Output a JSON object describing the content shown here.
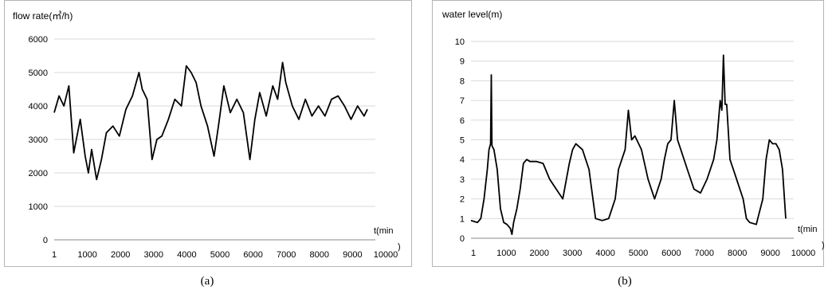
{
  "captions": {
    "a": "(a)",
    "b": "(b)"
  },
  "chart_data": [
    {
      "type": "line",
      "title": "flow rate(㎥/h)",
      "xlabel_line1": "t(min",
      "xlabel_line2": ")",
      "ylabel": "",
      "x_ticks": [
        "1",
        "1000",
        "2000",
        "3000",
        "4000",
        "5000",
        "6000",
        "7000",
        "8000",
        "9000",
        "10000"
      ],
      "y_ticks": [
        0,
        1000,
        2000,
        3000,
        4000,
        5000,
        6000
      ],
      "ylim": [
        0,
        6000
      ],
      "xlim": [
        1,
        9600
      ],
      "grid": "horizontal",
      "series": [
        {
          "color": "#000000",
          "x": [
            1,
            150,
            300,
            450,
            600,
            800,
            950,
            1050,
            1150,
            1300,
            1450,
            1600,
            1800,
            2000,
            2200,
            2400,
            2600,
            2700,
            2850,
            3000,
            3150,
            3300,
            3500,
            3700,
            3900,
            4050,
            4200,
            4350,
            4500,
            4700,
            4900,
            5050,
            5200,
            5400,
            5600,
            5800,
            6000,
            6150,
            6300,
            6500,
            6700,
            6850,
            7000,
            7100,
            7300,
            7500,
            7700,
            7900,
            8100,
            8300,
            8500,
            8700,
            8900,
            9100,
            9300,
            9500,
            9600
          ],
          "values": [
            3800,
            4300,
            4000,
            4600,
            2600,
            3600,
            2500,
            2000,
            2700,
            1800,
            2400,
            3200,
            3400,
            3100,
            3900,
            4300,
            5000,
            4500,
            4200,
            2400,
            3000,
            3100,
            3600,
            4200,
            4000,
            5200,
            5000,
            4700,
            4000,
            3400,
            2500,
            3500,
            4600,
            3800,
            4200,
            3800,
            2400,
            3600,
            4400,
            3700,
            4600,
            4200,
            5300,
            4700,
            4000,
            3600,
            4200,
            3700,
            4000,
            3700,
            4200,
            4300,
            4000,
            3600,
            4000,
            3700,
            3900
          ]
        }
      ]
    },
    {
      "type": "line",
      "title": "water  level(m)",
      "xlabel_line1": "t(min",
      "xlabel_line2": ")",
      "ylabel": "",
      "x_ticks": [
        "1",
        "1000",
        "2000",
        "3000",
        "4000",
        "5000",
        "6000",
        "7000",
        "8000",
        "9000",
        "10000"
      ],
      "y_ticks": [
        0,
        1,
        2,
        3,
        4,
        5,
        6,
        7,
        8,
        9,
        10
      ],
      "ylim": [
        0,
        10
      ],
      "xlim": [
        1,
        9600
      ],
      "grid": "horizontal",
      "series": [
        {
          "color": "#000000",
          "x": [
            1,
            200,
            300,
            400,
            500,
            550,
            600,
            620,
            640,
            700,
            800,
            900,
            1000,
            1100,
            1200,
            1250,
            1300,
            1400,
            1500,
            1600,
            1700,
            1800,
            2000,
            2200,
            2400,
            2600,
            2800,
            3000,
            3100,
            3200,
            3400,
            3600,
            3800,
            4000,
            4200,
            4400,
            4500,
            4700,
            4800,
            4900,
            5000,
            5200,
            5400,
            5500,
            5600,
            5800,
            5900,
            6000,
            6100,
            6200,
            6300,
            6400,
            6600,
            6800,
            7000,
            7200,
            7400,
            7500,
            7600,
            7650,
            7700,
            7750,
            7800,
            7900,
            8000,
            8200,
            8300,
            8400,
            8500,
            8700,
            8900,
            9000,
            9100,
            9200,
            9300,
            9400,
            9500,
            9600
          ],
          "values": [
            0.9,
            0.8,
            1.0,
            2.0,
            3.5,
            4.5,
            4.8,
            8.3,
            4.7,
            4.5,
            3.5,
            1.5,
            0.8,
            0.7,
            0.5,
            0.2,
            0.8,
            1.5,
            2.5,
            3.8,
            4.0,
            3.9,
            3.9,
            3.8,
            3.0,
            2.5,
            2.0,
            3.8,
            4.5,
            4.8,
            4.5,
            3.5,
            1.0,
            0.9,
            1.0,
            2.0,
            3.5,
            4.5,
            6.5,
            5.0,
            5.2,
            4.5,
            3.0,
            2.5,
            2.0,
            3.0,
            4.0,
            4.8,
            5.0,
            7.0,
            5.0,
            4.5,
            3.5,
            2.5,
            2.3,
            3.0,
            4.0,
            5.0,
            7.0,
            6.5,
            9.3,
            6.8,
            6.8,
            4.0,
            3.5,
            2.5,
            2.0,
            1.0,
            0.8,
            0.7,
            2.0,
            4.0,
            5.0,
            4.8,
            4.8,
            4.5,
            3.5,
            1.0
          ]
        }
      ]
    }
  ]
}
